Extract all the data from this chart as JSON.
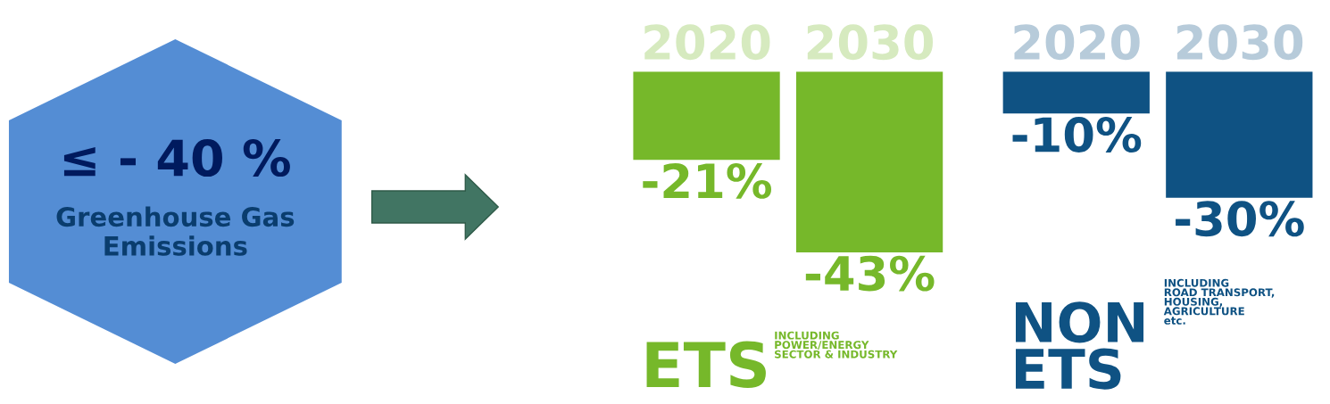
{
  "chart_data": [
    {
      "type": "other",
      "annotations": [
        "≤ - 40 %",
        "Greenhouse Gas\nEmissions"
      ]
    },
    {
      "type": "bar",
      "title": "ETS",
      "subtitle": "INCLUDING\nPOWER/ENERGY\nSECTOR & INDUSTRY",
      "categories": [
        "2020",
        "2030"
      ],
      "values": [
        -21,
        -43
      ],
      "value_labels": [
        "-21%",
        "-43%"
      ],
      "color": "#76b82a"
    },
    {
      "type": "bar",
      "title": "NON\nETS",
      "subtitle": "INCLUDING\nROAD TRANSPORT,\nHOUSING,\nAGRICULTURE\netc.",
      "categories": [
        "2020",
        "2030"
      ],
      "values": [
        -10,
        -30
      ],
      "value_labels": [
        "-10%",
        "-30%"
      ],
      "color": "#0f5283"
    }
  ]
}
